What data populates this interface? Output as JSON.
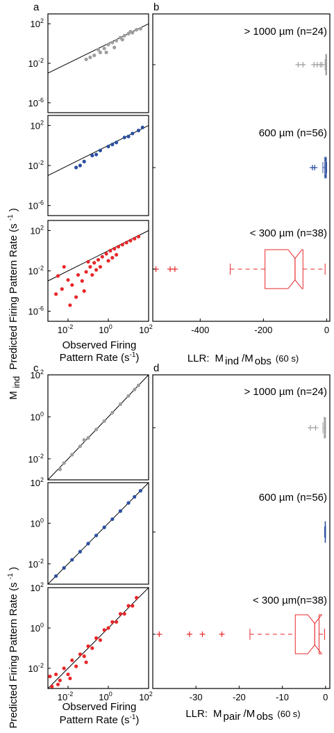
{
  "colors": {
    "gray": "#9e9e9e",
    "blue": "#2c4fa0",
    "red": "#e8272a",
    "frame": "#000000",
    "refline": "#000000"
  },
  "top": {
    "letters": {
      "a": "a",
      "b": "b"
    },
    "ylabel_main": "Predicted Firing Pattern Rate (s",
    "ylabel_exp": "-1",
    "ylabel_close": ")",
    "ylabel_m": "M",
    "ylabel_sub": "ind",
    "xlabel_line1": "Observed Firing",
    "xlabel_line2": "Pattern Rate (s",
    "xlabel_exp": "-1",
    "xlabel_close": ")",
    "right_xlabel": {
      "prefix": "LLR:",
      "m1": "M",
      "sub1": "ind",
      "slash": "/M",
      "sub2": "obs",
      "suffix": "(60 s)"
    },
    "groups": [
      ">  1000 µm (n=24)",
      "600 µm (n=56)",
      "<  300 µm (n=38)"
    ]
  },
  "bottom": {
    "letters": {
      "c": "c",
      "d": "d"
    },
    "ylabel_main": "Predicted Firing Pattern Rate (s",
    "ylabel_exp": "-1",
    "ylabel_close": ")",
    "ylabel_m": "M",
    "ylabel_sub": "pair",
    "xlabel_line1": "Observed Firing",
    "xlabel_line2": "Pattern Rate (s",
    "xlabel_exp": "-1",
    "xlabel_close": ")",
    "right_xlabel": {
      "prefix": "LLR:",
      "m1": "M",
      "sub1": "pair",
      "slash": "/M",
      "sub2": "obs",
      "suffix": "(60 s)"
    },
    "groups": [
      "> 1000 µm (n=24)",
      "600 µm (n=56)",
      "< 300 µm(n=38)"
    ]
  },
  "chart_data": [
    {
      "panel": "a",
      "type": "scatter",
      "log_axes": true,
      "xlim_exp": [
        -3,
        2
      ],
      "ylim_exp": [
        -7,
        3
      ],
      "y_ticks": [
        "10",
        "10",
        "10"
      ],
      "y_tick_exps": [
        "2",
        "-2",
        "-6"
      ],
      "x_ticks": [
        "10",
        "10",
        "10"
      ],
      "x_tick_exps": [
        "-2",
        "0",
        "2"
      ],
      "rows": [
        {
          "color": "gray",
          "points_log": [
            [
              -0.5,
              -0.6
            ],
            [
              -0.2,
              -0.5
            ],
            [
              0,
              -0.1
            ],
            [
              0.2,
              0.1
            ],
            [
              0.4,
              0.3
            ],
            [
              0.6,
              0.6
            ],
            [
              0.8,
              0.8
            ],
            [
              1.0,
              1.0
            ],
            [
              1.2,
              1.1
            ],
            [
              1.4,
              1.4
            ],
            [
              1.6,
              1.5
            ],
            [
              -0.7,
              -1.2
            ],
            [
              -0.4,
              -0.9
            ],
            [
              -0.9,
              -1.4
            ],
            [
              -1.1,
              -1.6
            ],
            [
              0.3,
              -0.4
            ],
            [
              0.7,
              0.4
            ],
            [
              1.1,
              1.2
            ],
            [
              -0.1,
              -0.9
            ]
          ]
        },
        {
          "color": "blue",
          "points_log": [
            [
              -1.6,
              -2.2
            ],
            [
              -1.2,
              -1.6
            ],
            [
              -0.8,
              -1.0
            ],
            [
              -0.4,
              -0.5
            ],
            [
              0,
              -0.1
            ],
            [
              0.4,
              0.3
            ],
            [
              0.8,
              0.8
            ],
            [
              1.2,
              1.2
            ],
            [
              1.5,
              1.5
            ],
            [
              1.7,
              1.8
            ],
            [
              -1.4,
              -2.0
            ],
            [
              -0.6,
              -0.9
            ],
            [
              0.2,
              0.1
            ],
            [
              1.0,
              0.9
            ]
          ]
        },
        {
          "color": "red",
          "points_log": [
            [
              -2.6,
              -4.3
            ],
            [
              -2.3,
              -3.8
            ],
            [
              -2.0,
              -2.9
            ],
            [
              -1.8,
              -3.4
            ],
            [
              -1.6,
              -4.6
            ],
            [
              -1.5,
              -2.4
            ],
            [
              -1.3,
              -3.0
            ],
            [
              -1.1,
              -2.1
            ],
            [
              -0.9,
              -1.6
            ],
            [
              -0.7,
              -1.2
            ],
            [
              -0.5,
              -0.9
            ],
            [
              -0.3,
              -0.6
            ],
            [
              -0.1,
              -0.3
            ],
            [
              0.1,
              0
            ],
            [
              0.3,
              0.2
            ],
            [
              0.5,
              0.4
            ],
            [
              0.7,
              0.6
            ],
            [
              0.9,
              0.8
            ],
            [
              1.1,
              1.0
            ],
            [
              1.3,
              1.2
            ],
            [
              1.5,
              1.4
            ],
            [
              -1.9,
              -5.4
            ],
            [
              -1.2,
              -4.0
            ],
            [
              -0.8,
              -2.4
            ],
            [
              -0.4,
              -1.6
            ],
            [
              0,
              -1.0
            ],
            [
              0.4,
              -0.4
            ],
            [
              -2.5,
              -2.5
            ],
            [
              -2.2,
              -1.6
            ],
            [
              -1.0,
              -1.1
            ],
            [
              -0.6,
              -1.9
            ],
            [
              0.2,
              -0.7
            ]
          ]
        }
      ]
    },
    {
      "panel": "b",
      "type": "box",
      "xlim": [
        -550,
        10
      ],
      "x_ticks": [
        -400,
        -200,
        0
      ],
      "boxes": [
        {
          "color": "gray",
          "whisker_low": -5,
          "q1": -3,
          "median": -1,
          "q3": 0,
          "whisker_high": 0,
          "outliers": [
            -90,
            -75,
            -40,
            -30,
            -20,
            -15
          ]
        },
        {
          "color": "blue",
          "whisker_low": -12,
          "q1": -6,
          "median": -3,
          "q3": -1,
          "whisker_high": 0,
          "outliers": [
            -45,
            -38
          ]
        },
        {
          "color": "red",
          "whisker_low": -305,
          "q1": -195,
          "median": -100,
          "q3": -75,
          "whisker_high": -5,
          "outliers": [
            -540,
            -495,
            -480
          ]
        }
      ]
    },
    {
      "panel": "c",
      "type": "scatter",
      "log_axes": true,
      "xlim_exp": [
        -3,
        2
      ],
      "ylim_exp": [
        -3,
        2
      ],
      "y_ticks": [
        "10",
        "10",
        "10"
      ],
      "y_tick_exps": [
        "2",
        "0",
        "-2"
      ],
      "x_ticks": [
        "10",
        "10",
        "10"
      ],
      "x_tick_exps": [
        "-2",
        "0",
        "2"
      ],
      "rows": [
        {
          "color": "gray",
          "points_log": [
            [
              -2.2,
              -2.2
            ],
            [
              -1.8,
              -1.8
            ],
            [
              -1.4,
              -1.4
            ],
            [
              -1.0,
              -1.0
            ],
            [
              -0.6,
              -0.6
            ],
            [
              -0.2,
              -0.2
            ],
            [
              0.2,
              0.2
            ],
            [
              0.6,
              0.6
            ],
            [
              1.0,
              1.0
            ],
            [
              1.3,
              1.3
            ],
            [
              1.5,
              1.5
            ],
            [
              -2.4,
              -2.5
            ],
            [
              -1.2,
              -1.1
            ]
          ]
        },
        {
          "color": "blue",
          "points_log": [
            [
              -2.6,
              -2.6
            ],
            [
              -2.2,
              -2.2
            ],
            [
              -1.8,
              -1.8
            ],
            [
              -1.4,
              -1.4
            ],
            [
              -1.0,
              -1.0
            ],
            [
              -0.6,
              -0.6
            ],
            [
              -0.2,
              -0.2
            ],
            [
              0.2,
              0.2
            ],
            [
              0.6,
              0.6
            ],
            [
              1.0,
              1.0
            ],
            [
              1.3,
              1.3
            ],
            [
              1.6,
              1.6
            ]
          ]
        },
        {
          "color": "red",
          "points_log": [
            [
              -2.8,
              -2.9
            ],
            [
              -2.6,
              -2.3
            ],
            [
              -2.4,
              -2.6
            ],
            [
              -2.2,
              -2.0
            ],
            [
              -2.0,
              -2.3
            ],
            [
              -1.8,
              -1.6
            ],
            [
              -1.6,
              -1.9
            ],
            [
              -1.4,
              -1.3
            ],
            [
              -1.2,
              -1.4
            ],
            [
              -1.0,
              -0.9
            ],
            [
              -0.8,
              -1.0
            ],
            [
              -0.6,
              -0.5
            ],
            [
              -0.4,
              -0.6
            ],
            [
              -0.2,
              -0.1
            ],
            [
              0,
              0
            ],
            [
              0.2,
              0.3
            ],
            [
              0.4,
              0.3
            ],
            [
              0.6,
              0.7
            ],
            [
              0.8,
              0.7
            ],
            [
              1.0,
              1.1
            ],
            [
              1.2,
              1.1
            ],
            [
              1.4,
              1.5
            ],
            [
              -2.9,
              -2.4
            ],
            [
              -2.5,
              -2.8
            ],
            [
              -1.9,
              -2.5
            ],
            [
              -1.1,
              -1.7
            ]
          ]
        }
      ]
    },
    {
      "panel": "d",
      "type": "box",
      "xlim": [
        -40,
        1
      ],
      "x_ticks": [
        -30,
        -20,
        -10,
        0
      ],
      "boxes": [
        {
          "color": "gray",
          "whisker_low": -0.6,
          "q1": -0.3,
          "median": -0.1,
          "q3": 0,
          "whisker_high": 0,
          "outliers": [
            -3.5,
            -2.3
          ]
        },
        {
          "color": "blue",
          "whisker_low": -0.2,
          "q1": -0.1,
          "median": -0.05,
          "q3": 0,
          "whisker_high": 0,
          "outliers": []
        },
        {
          "color": "red",
          "whisker_low": -17.5,
          "q1": -7,
          "median": -2.5,
          "q3": -1.5,
          "whisker_high": -0.2,
          "outliers": [
            -38.5,
            -31.5,
            -28.5,
            -24
          ]
        }
      ]
    }
  ]
}
